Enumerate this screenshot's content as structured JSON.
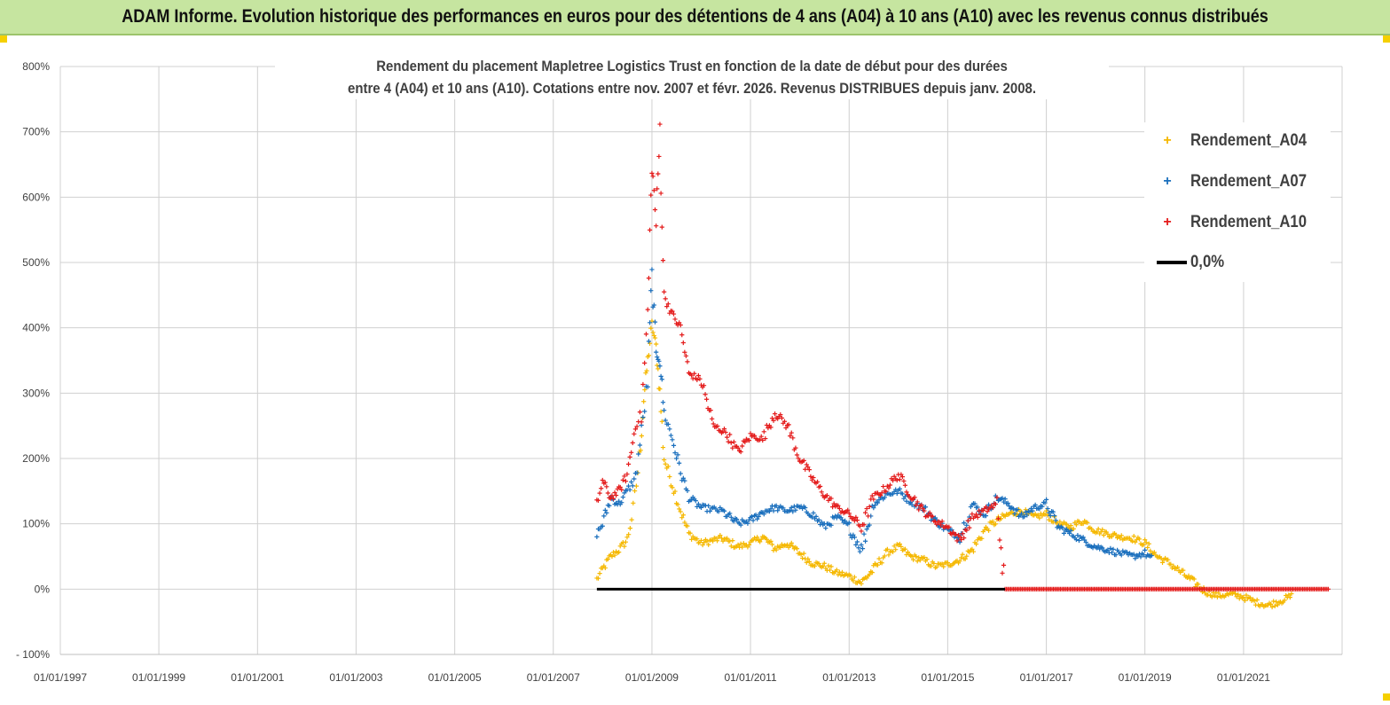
{
  "header": {
    "title": "ADAM Informe. Evolution historique des performances en euros pour des détentions de 4 ans (A04) à 10 ans (A10) avec les revenus connus distribués"
  },
  "chart_data": {
    "type": "scatter",
    "title_lines": [
      "Rendement du placement Mapletree Logistics Trust en fonction de la date de début pour des durées",
      "entre 4 (A04) et 10 ans (A10).  Cotations entre nov. 2007 et févr. 2026. Revenus DISTRIBUES depuis janv. 2008."
    ],
    "xlabel": "",
    "ylabel": "",
    "x_ticks": [
      "01/01/1997",
      "01/01/1999",
      "01/01/2001",
      "01/01/2003",
      "01/01/2005",
      "01/01/2007",
      "01/01/2009",
      "01/01/2011",
      "01/01/2013",
      "01/01/2015",
      "01/01/2017",
      "01/01/2019",
      "01/01/2021"
    ],
    "xlim": [
      "1997-01-01",
      "2023-01-01"
    ],
    "y_ticks": [
      "800%",
      "700%",
      "600%",
      "500%",
      "400%",
      "300%",
      "200%",
      "100%",
      "0%",
      "- 100%"
    ],
    "ylim": [
      -100,
      800
    ],
    "grid": true,
    "legend_position": "top-right",
    "series": [
      {
        "name": "Rendement_A04",
        "color": "#f5b800",
        "marker": "plus",
        "points": [
          [
            "2007-11-20",
            15
          ],
          [
            "2008-01-01",
            30
          ],
          [
            "2008-03-01",
            50
          ],
          [
            "2008-05-01",
            60
          ],
          [
            "2008-07-01",
            75
          ],
          [
            "2008-08-15",
            120
          ],
          [
            "2008-10-01",
            200
          ],
          [
            "2008-11-01",
            290
          ],
          [
            "2008-12-01",
            350
          ],
          [
            "2009-01-01",
            405
          ],
          [
            "2009-02-01",
            370
          ],
          [
            "2009-03-01",
            300
          ],
          [
            "2009-04-01",
            200
          ],
          [
            "2009-06-01",
            160
          ],
          [
            "2009-08-01",
            120
          ],
          [
            "2009-10-01",
            85
          ],
          [
            "2010-01-01",
            70
          ],
          [
            "2010-06-01",
            78
          ],
          [
            "2010-10-01",
            65
          ],
          [
            "2011-01-01",
            70
          ],
          [
            "2011-04-01",
            80
          ],
          [
            "2011-07-01",
            62
          ],
          [
            "2011-10-01",
            70
          ],
          [
            "2012-01-01",
            55
          ],
          [
            "2012-04-01",
            40
          ],
          [
            "2012-07-01",
            35
          ],
          [
            "2012-10-01",
            25
          ],
          [
            "2013-01-01",
            20
          ],
          [
            "2013-04-01",
            10
          ],
          [
            "2013-07-01",
            30
          ],
          [
            "2013-10-01",
            55
          ],
          [
            "2014-01-01",
            65
          ],
          [
            "2014-04-01",
            50
          ],
          [
            "2014-07-01",
            45
          ],
          [
            "2014-10-01",
            35
          ],
          [
            "2015-01-01",
            38
          ],
          [
            "2015-04-01",
            45
          ],
          [
            "2015-07-01",
            60
          ],
          [
            "2015-10-01",
            90
          ],
          [
            "2016-01-01",
            105
          ],
          [
            "2016-04-01",
            115
          ],
          [
            "2016-07-01",
            120
          ],
          [
            "2016-10-01",
            110
          ],
          [
            "2017-01-01",
            115
          ],
          [
            "2017-04-01",
            100
          ],
          [
            "2017-07-01",
            95
          ],
          [
            "2017-10-01",
            105
          ],
          [
            "2018-01-01",
            90
          ],
          [
            "2018-04-01",
            85
          ],
          [
            "2018-07-01",
            80
          ],
          [
            "2018-10-01",
            78
          ],
          [
            "2019-01-01",
            70
          ],
          [
            "2019-04-01",
            50
          ],
          [
            "2019-07-01",
            40
          ],
          [
            "2019-10-01",
            25
          ],
          [
            "2020-01-01",
            10
          ],
          [
            "2020-04-01",
            -5
          ],
          [
            "2020-07-01",
            -10
          ],
          [
            "2020-10-01",
            -8
          ],
          [
            "2021-01-01",
            -12
          ],
          [
            "2021-04-01",
            -20
          ],
          [
            "2021-07-01",
            -25
          ],
          [
            "2021-10-01",
            -18
          ],
          [
            "2022-01-01",
            -10
          ]
        ]
      },
      {
        "name": "Rendement_A07",
        "color": "#1a6fbd",
        "marker": "plus",
        "points": [
          [
            "2007-11-20",
            85
          ],
          [
            "2008-01-01",
            100
          ],
          [
            "2008-03-01",
            140
          ],
          [
            "2008-05-01",
            130
          ],
          [
            "2008-07-01",
            150
          ],
          [
            "2008-09-01",
            170
          ],
          [
            "2008-10-15",
            240
          ],
          [
            "2008-12-01",
            320
          ],
          [
            "2009-01-01",
            480
          ],
          [
            "2009-02-01",
            360
          ],
          [
            "2009-03-01",
            350
          ],
          [
            "2009-04-01",
            270
          ],
          [
            "2009-06-01",
            230
          ],
          [
            "2009-08-01",
            180
          ],
          [
            "2009-10-01",
            140
          ],
          [
            "2010-01-01",
            125
          ],
          [
            "2010-06-01",
            120
          ],
          [
            "2010-10-01",
            100
          ],
          [
            "2011-01-01",
            105
          ],
          [
            "2011-04-01",
            118
          ],
          [
            "2011-07-01",
            125
          ],
          [
            "2011-10-01",
            120
          ],
          [
            "2012-01-01",
            125
          ],
          [
            "2012-04-01",
            115
          ],
          [
            "2012-07-01",
            95
          ],
          [
            "2012-10-01",
            110
          ],
          [
            "2013-01-01",
            95
          ],
          [
            "2013-04-01",
            60
          ],
          [
            "2013-07-01",
            130
          ],
          [
            "2013-10-01",
            145
          ],
          [
            "2014-01-01",
            150
          ],
          [
            "2014-04-01",
            135
          ],
          [
            "2014-07-01",
            125
          ],
          [
            "2014-10-01",
            105
          ],
          [
            "2015-01-01",
            90
          ],
          [
            "2015-04-01",
            80
          ],
          [
            "2015-07-01",
            130
          ],
          [
            "2015-10-01",
            115
          ],
          [
            "2016-01-01",
            140
          ],
          [
            "2016-04-01",
            130
          ],
          [
            "2016-07-01",
            110
          ],
          [
            "2016-10-01",
            125
          ],
          [
            "2017-01-01",
            130
          ],
          [
            "2017-04-01",
            95
          ],
          [
            "2017-07-01",
            85
          ],
          [
            "2017-10-01",
            75
          ],
          [
            "2018-01-01",
            65
          ],
          [
            "2018-04-01",
            60
          ],
          [
            "2018-07-01",
            55
          ],
          [
            "2018-10-01",
            50
          ],
          [
            "2019-01-01",
            55
          ],
          [
            "2019-03-01",
            45
          ]
        ]
      },
      {
        "name": "Rendement_A10",
        "color": "#e41b1b",
        "marker": "plus",
        "points": [
          [
            "2007-11-20",
            130
          ],
          [
            "2008-01-01",
            165
          ],
          [
            "2008-03-01",
            140
          ],
          [
            "2008-05-01",
            150
          ],
          [
            "2008-07-01",
            175
          ],
          [
            "2008-09-01",
            250
          ],
          [
            "2008-10-15",
            270
          ],
          [
            "2008-12-01",
            420
          ],
          [
            "2009-01-01",
            650
          ],
          [
            "2009-02-01",
            560
          ],
          [
            "2009-03-01",
            700
          ],
          [
            "2009-04-01",
            450
          ],
          [
            "2009-06-01",
            420
          ],
          [
            "2009-08-01",
            400
          ],
          [
            "2009-10-01",
            330
          ],
          [
            "2010-01-01",
            320
          ],
          [
            "2010-04-01",
            250
          ],
          [
            "2010-07-01",
            240
          ],
          [
            "2010-10-01",
            210
          ],
          [
            "2011-01-01",
            235
          ],
          [
            "2011-04-01",
            230
          ],
          [
            "2011-07-01",
            270
          ],
          [
            "2011-10-01",
            250
          ],
          [
            "2012-01-01",
            200
          ],
          [
            "2012-04-01",
            170
          ],
          [
            "2012-07-01",
            145
          ],
          [
            "2012-10-01",
            125
          ],
          [
            "2013-01-01",
            115
          ],
          [
            "2013-04-01",
            95
          ],
          [
            "2013-07-01",
            140
          ],
          [
            "2013-10-01",
            155
          ],
          [
            "2014-01-01",
            175
          ],
          [
            "2014-04-01",
            145
          ],
          [
            "2014-07-01",
            120
          ],
          [
            "2014-10-01",
            105
          ],
          [
            "2015-01-01",
            95
          ],
          [
            "2015-04-01",
            75
          ],
          [
            "2015-07-01",
            110
          ],
          [
            "2015-10-01",
            120
          ],
          [
            "2016-01-01",
            130
          ],
          [
            "2016-03-01",
            0
          ],
          [
            "2017-01-01",
            0
          ],
          [
            "2018-01-01",
            0
          ],
          [
            "2019-01-01",
            0
          ],
          [
            "2020-01-01",
            0
          ],
          [
            "2021-01-01",
            0
          ],
          [
            "2022-01-01",
            0
          ],
          [
            "2022-10-01",
            0
          ]
        ]
      },
      {
        "name": "0,0%",
        "color": "#000000",
        "marker": "line",
        "points": [
          [
            "2007-11-20",
            0
          ],
          [
            "2016-03-01",
            0
          ]
        ]
      }
    ]
  }
}
